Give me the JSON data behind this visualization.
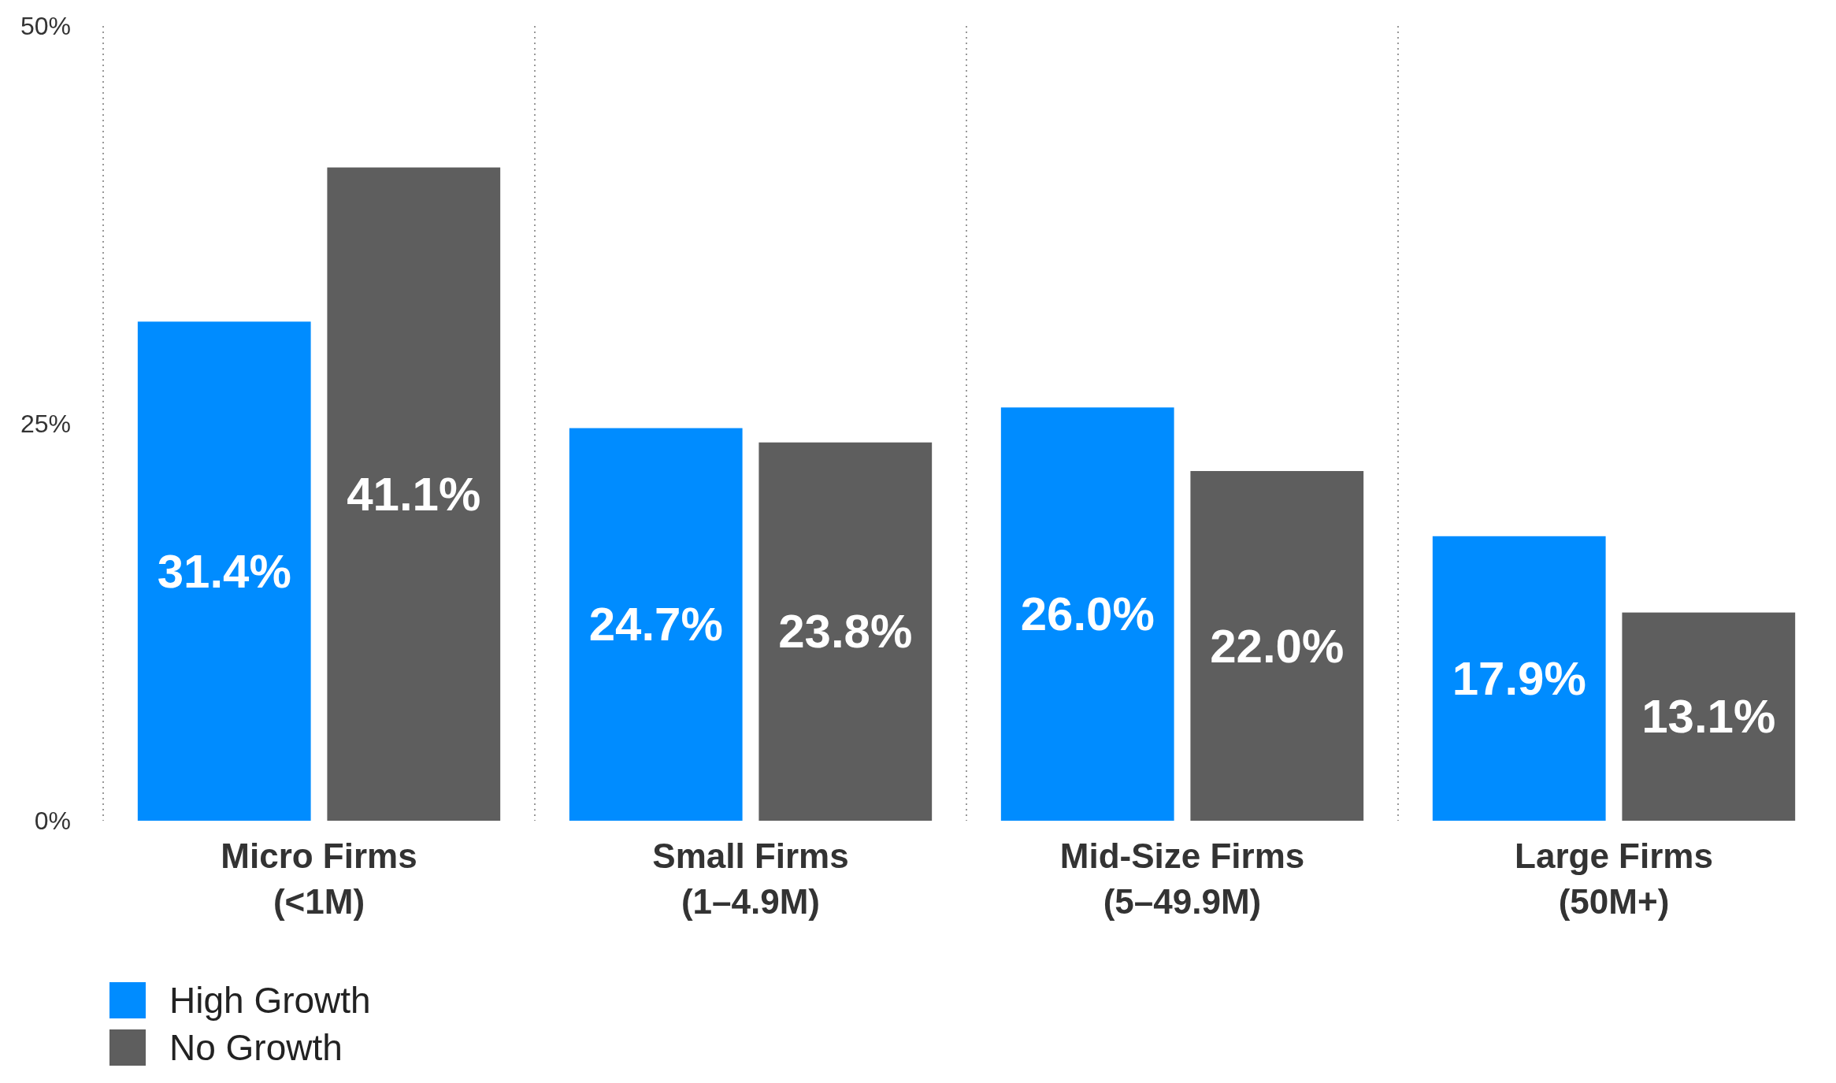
{
  "chart_data": {
    "type": "bar",
    "categories": [
      "Micro Firms\n(<1M)",
      "Small Firms\n(1–4.9M)",
      "Mid-Size Firms\n(5–49.9M)",
      "Large Firms\n(50M+)"
    ],
    "series": [
      {
        "name": "High Growth",
        "color": "#008cff",
        "values": [
          31.4,
          24.7,
          26.0,
          17.9
        ],
        "value_labels": [
          "31.4%",
          "24.7%",
          "26.0%",
          "17.9%"
        ]
      },
      {
        "name": "No Growth",
        "color": "#5e5e5e",
        "values": [
          41.1,
          23.8,
          22.0,
          13.1
        ],
        "value_labels": [
          "41.1%",
          "23.8%",
          "22.0%",
          "13.1%"
        ]
      }
    ],
    "ylim": [
      0,
      50
    ],
    "yticks": [
      {
        "value": 0,
        "label": "0%"
      },
      {
        "value": 25,
        "label": "25%"
      },
      {
        "value": 50,
        "label": "50%"
      }
    ],
    "grid": "x",
    "legend": "bottom left"
  }
}
